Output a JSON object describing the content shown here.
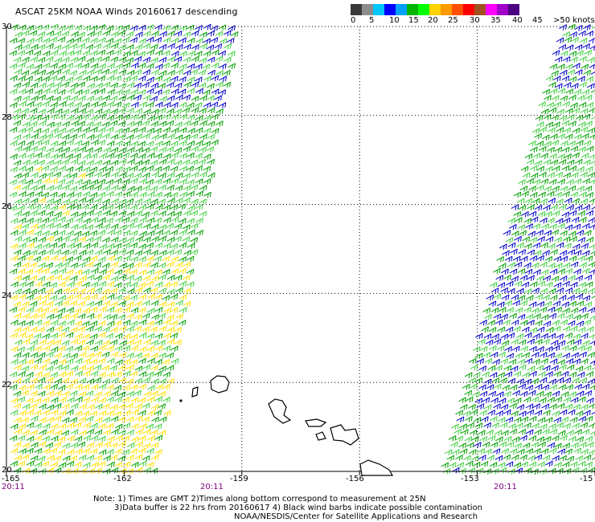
{
  "title": "ASCAT 25KM NOAA Winds 20160617 descending",
  "colorbar": {
    "colors": [
      "#3a3a3a",
      "#8c8c8c",
      "#00c8ff",
      "#0000ff",
      "#00a0ff",
      "#00b400",
      "#00ff00",
      "#ffd200",
      "#ff9a00",
      "#ff5000",
      "#ff0000",
      "#a05020",
      "#ff00ff",
      "#a000c8",
      "#4b0082"
    ],
    "labels": [
      "0",
      "5",
      "10",
      "15",
      "20",
      "25",
      "30",
      "35",
      "40",
      "45",
      ">50 knots"
    ]
  },
  "map": {
    "lat_labels": [
      "30",
      "28",
      "26",
      "24",
      "22",
      "20"
    ],
    "lon_labels": [
      "-165",
      "-162",
      "-159",
      "-156",
      "-153",
      "-15"
    ],
    "time_labels": [
      "20:11",
      "20:11",
      "20:11"
    ],
    "lat_range": [
      20,
      30
    ],
    "lon_range": [
      -165,
      -150
    ],
    "wind_colors": {
      "green_dark": "#00a000",
      "green_light": "#40d040",
      "blue": "#0000cc",
      "yellow": "#ffe000"
    },
    "islands": [
      "Kauai",
      "Niihau",
      "Oahu",
      "Molokai",
      "Maui",
      "Lanai",
      "Hawaii"
    ]
  },
  "notes": {
    "line1": "Note: 1) Times are GMT 2)Times along bottom correspond to measurement at 25N",
    "line2": "3)Data buffer is 22 hrs from 20160617 4) Black wind barbs indicate possible contamination",
    "line3": "NOAA/NESDIS/Center for Satellite Applications and Research"
  }
}
